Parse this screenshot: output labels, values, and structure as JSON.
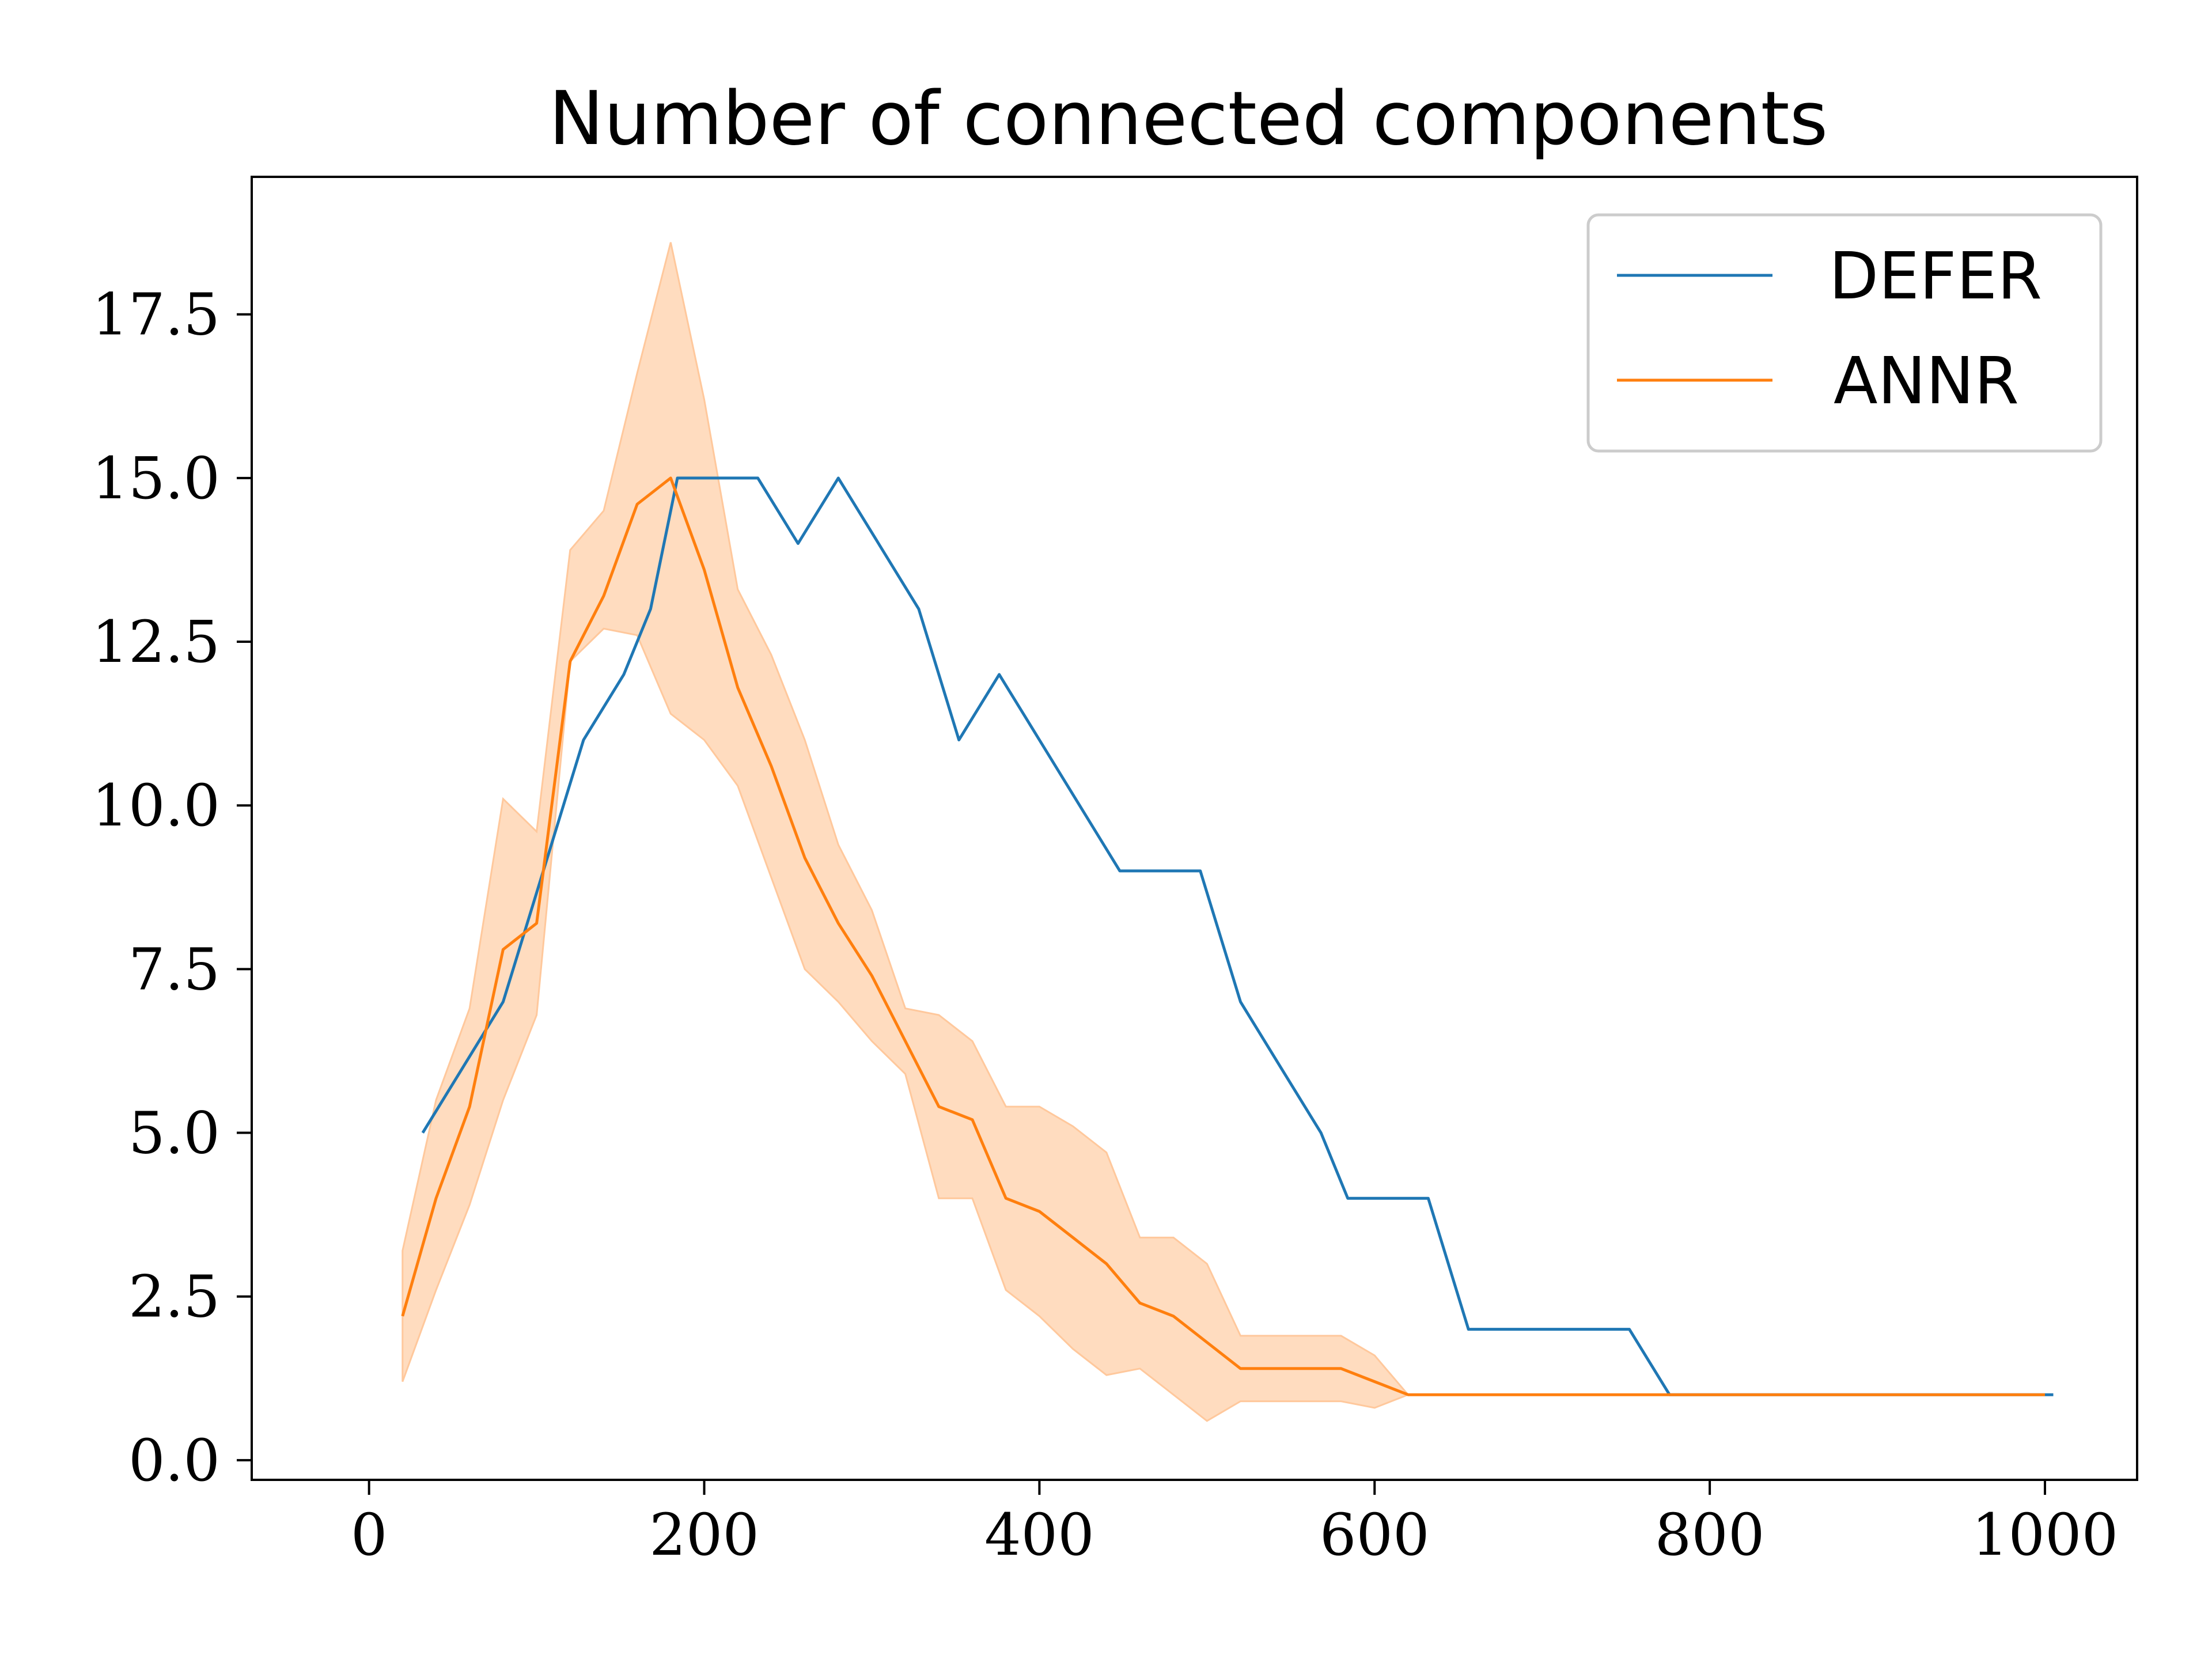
{
  "chart_data": {
    "type": "line",
    "title": "Number of connected components",
    "xlabel": "",
    "ylabel": "",
    "xlim": [
      -70,
      1055
    ],
    "ylim": [
      -0.3,
      19.6
    ],
    "xticks": [
      0,
      200,
      400,
      600,
      800,
      1000
    ],
    "yticks": [
      0.0,
      2.5,
      5.0,
      7.5,
      10.0,
      12.5,
      15.0,
      17.5
    ],
    "xtick_labels": [
      "0",
      "200",
      "400",
      "600",
      "800",
      "1000"
    ],
    "ytick_labels": [
      "0.0",
      "2.5",
      "5.0",
      "7.5",
      "10.0",
      "12.5",
      "15.0",
      "17.5"
    ],
    "grid": false,
    "legend_position": "top-right",
    "series": [
      {
        "name": "DEFER",
        "color": "#1f77b4",
        "x": [
          32,
          56,
          80,
          104,
          128,
          152,
          168,
          184,
          208,
          232,
          256,
          280,
          304,
          328,
          352,
          376,
          400,
          424,
          448,
          472,
          496,
          520,
          544,
          568,
          584,
          608,
          632,
          656,
          680,
          704,
          728,
          752,
          776,
          800,
          824,
          848,
          872,
          896,
          920,
          944,
          968,
          992,
          1005
        ],
        "y": [
          5,
          6,
          7,
          9,
          11,
          12,
          13,
          15,
          15,
          15,
          14,
          15,
          14,
          13,
          11,
          12,
          11,
          10,
          9,
          9,
          9,
          7,
          6,
          5,
          4,
          4,
          4,
          2,
          2,
          2,
          2,
          2,
          1,
          1,
          1,
          1,
          1,
          1,
          1,
          1,
          1,
          1,
          1
        ]
      },
      {
        "name": "ANNR",
        "color": "#ff7f0e",
        "band_color": "#ffdcbf",
        "x": [
          20,
          40,
          60,
          80,
          100,
          120,
          140,
          160,
          180,
          200,
          220,
          240,
          260,
          280,
          300,
          320,
          340,
          360,
          380,
          400,
          420,
          440,
          460,
          480,
          500,
          520,
          540,
          560,
          580,
          600,
          620,
          640,
          660,
          680,
          700,
          720,
          740,
          760,
          780,
          800,
          820,
          840,
          860,
          880,
          900,
          920,
          940,
          960,
          980,
          1000
        ],
        "y": [
          2.2,
          4.0,
          5.4,
          7.8,
          8.2,
          12.2,
          13.2,
          14.6,
          15.0,
          13.6,
          11.8,
          10.6,
          9.2,
          8.2,
          7.4,
          6.4,
          5.4,
          5.2,
          4.0,
          3.8,
          3.4,
          3.0,
          2.4,
          2.2,
          1.8,
          1.4,
          1.4,
          1.4,
          1.4,
          1.2,
          1.0,
          1.0,
          1.0,
          1.0,
          1.0,
          1.0,
          1.0,
          1.0,
          1.0,
          1.0,
          1.0,
          1.0,
          1.0,
          1.0,
          1.0,
          1.0,
          1.0,
          1.0,
          1.0,
          1.0
        ],
        "y_lower": [
          1.2,
          2.6,
          3.9,
          5.5,
          6.8,
          12.2,
          12.7,
          12.6,
          11.4,
          11.0,
          10.3,
          8.9,
          7.5,
          7.0,
          6.4,
          5.9,
          4.0,
          4.0,
          2.6,
          2.2,
          1.7,
          1.3,
          1.4,
          1.0,
          0.6,
          0.9,
          0.9,
          0.9,
          0.9,
          0.8,
          1.0,
          1.0,
          1.0,
          1.0,
          1.0,
          1.0,
          1.0,
          1.0,
          1.0,
          1.0,
          1.0,
          1.0,
          1.0,
          1.0,
          1.0,
          1.0,
          1.0,
          1.0,
          1.0,
          1.0
        ],
        "y_upper": [
          3.2,
          5.5,
          6.9,
          10.1,
          9.6,
          13.9,
          14.5,
          16.6,
          18.6,
          16.2,
          13.3,
          12.3,
          11.0,
          9.4,
          8.4,
          6.9,
          6.8,
          6.4,
          5.4,
          5.4,
          5.1,
          4.7,
          3.4,
          3.4,
          3.0,
          1.9,
          1.9,
          1.9,
          1.9,
          1.6,
          1.0,
          1.0,
          1.0,
          1.0,
          1.0,
          1.0,
          1.0,
          1.0,
          1.0,
          1.0,
          1.0,
          1.0,
          1.0,
          1.0,
          1.0,
          1.0,
          1.0,
          1.0,
          1.0,
          1.0
        ]
      }
    ]
  }
}
